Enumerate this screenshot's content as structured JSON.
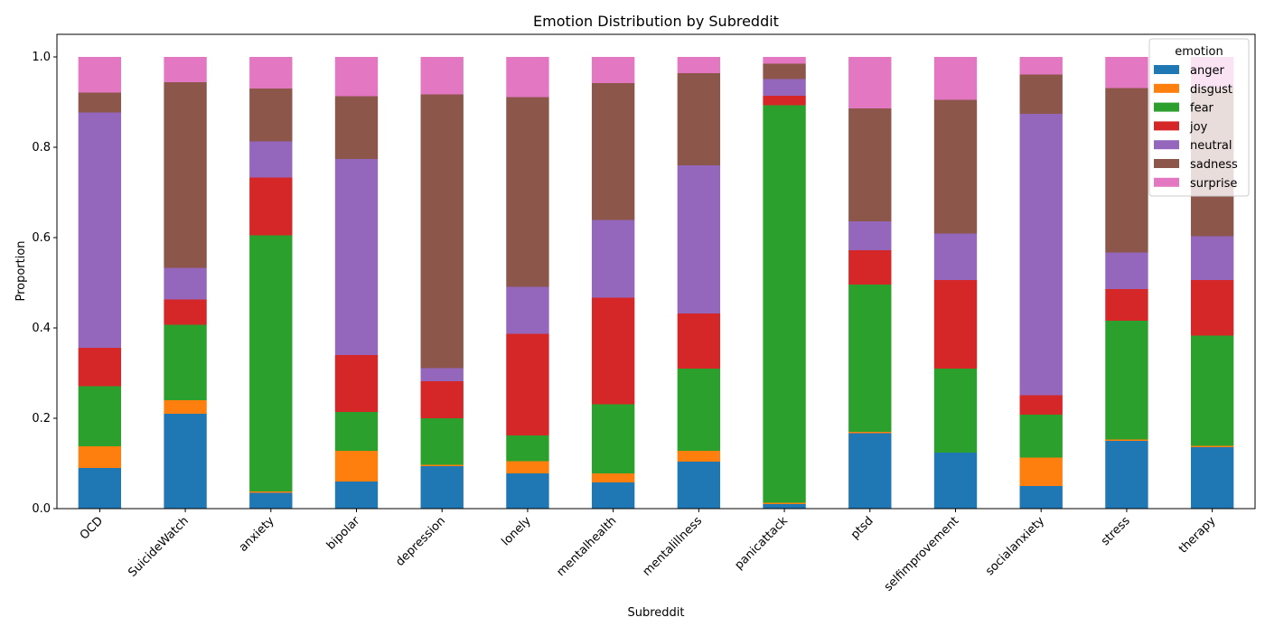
{
  "chart_data": {
    "type": "bar",
    "stacked": true,
    "title": "Emotion Distribution by Subreddit",
    "xlabel": "Subreddit",
    "ylabel": "Proportion",
    "ylim": [
      0,
      1.05
    ],
    "yticks": [
      "0.0",
      "0.2",
      "0.4",
      "0.6",
      "0.8",
      "1.0"
    ],
    "grid": false,
    "legend": {
      "title": "emotion",
      "placement": "top-right"
    },
    "categories": [
      "OCD",
      "SuicideWatch",
      "anxiety",
      "bipolar",
      "depression",
      "lonely",
      "mentalhealth",
      "mentalillness",
      "panicattack",
      "ptsd",
      "selfimprovement",
      "socialanxiety",
      "stress",
      "therapy"
    ],
    "series": [
      {
        "name": "anger",
        "color": "#1f77b4",
        "values": [
          0.09,
          0.21,
          0.035,
          0.06,
          0.094,
          0.078,
          0.058,
          0.104,
          0.01,
          0.167,
          0.124,
          0.05,
          0.15,
          0.136
        ]
      },
      {
        "name": "disgust",
        "color": "#ff7f0e",
        "values": [
          0.048,
          0.03,
          0.003,
          0.068,
          0.003,
          0.027,
          0.02,
          0.024,
          0.003,
          0.003,
          0.0,
          0.063,
          0.003,
          0.003
        ]
      },
      {
        "name": "fear",
        "color": "#2ca02c",
        "values": [
          0.133,
          0.167,
          0.567,
          0.086,
          0.103,
          0.057,
          0.153,
          0.182,
          0.88,
          0.326,
          0.186,
          0.095,
          0.263,
          0.244
        ]
      },
      {
        "name": "joy",
        "color": "#d62728",
        "values": [
          0.085,
          0.056,
          0.128,
          0.126,
          0.082,
          0.225,
          0.236,
          0.122,
          0.021,
          0.076,
          0.196,
          0.043,
          0.07,
          0.123
        ]
      },
      {
        "name": "neutral",
        "color": "#9467bd",
        "values": [
          0.521,
          0.07,
          0.08,
          0.434,
          0.029,
          0.104,
          0.172,
          0.328,
          0.037,
          0.064,
          0.103,
          0.623,
          0.081,
          0.097
        ]
      },
      {
        "name": "sadness",
        "color": "#8c564b",
        "values": [
          0.044,
          0.411,
          0.117,
          0.139,
          0.606,
          0.42,
          0.303,
          0.204,
          0.034,
          0.25,
          0.296,
          0.087,
          0.364,
          0.329
        ]
      },
      {
        "name": "surprise",
        "color": "#e377c2",
        "values": [
          0.079,
          0.056,
          0.07,
          0.087,
          0.083,
          0.089,
          0.058,
          0.036,
          0.015,
          0.114,
          0.095,
          0.039,
          0.069,
          0.068
        ]
      }
    ]
  }
}
